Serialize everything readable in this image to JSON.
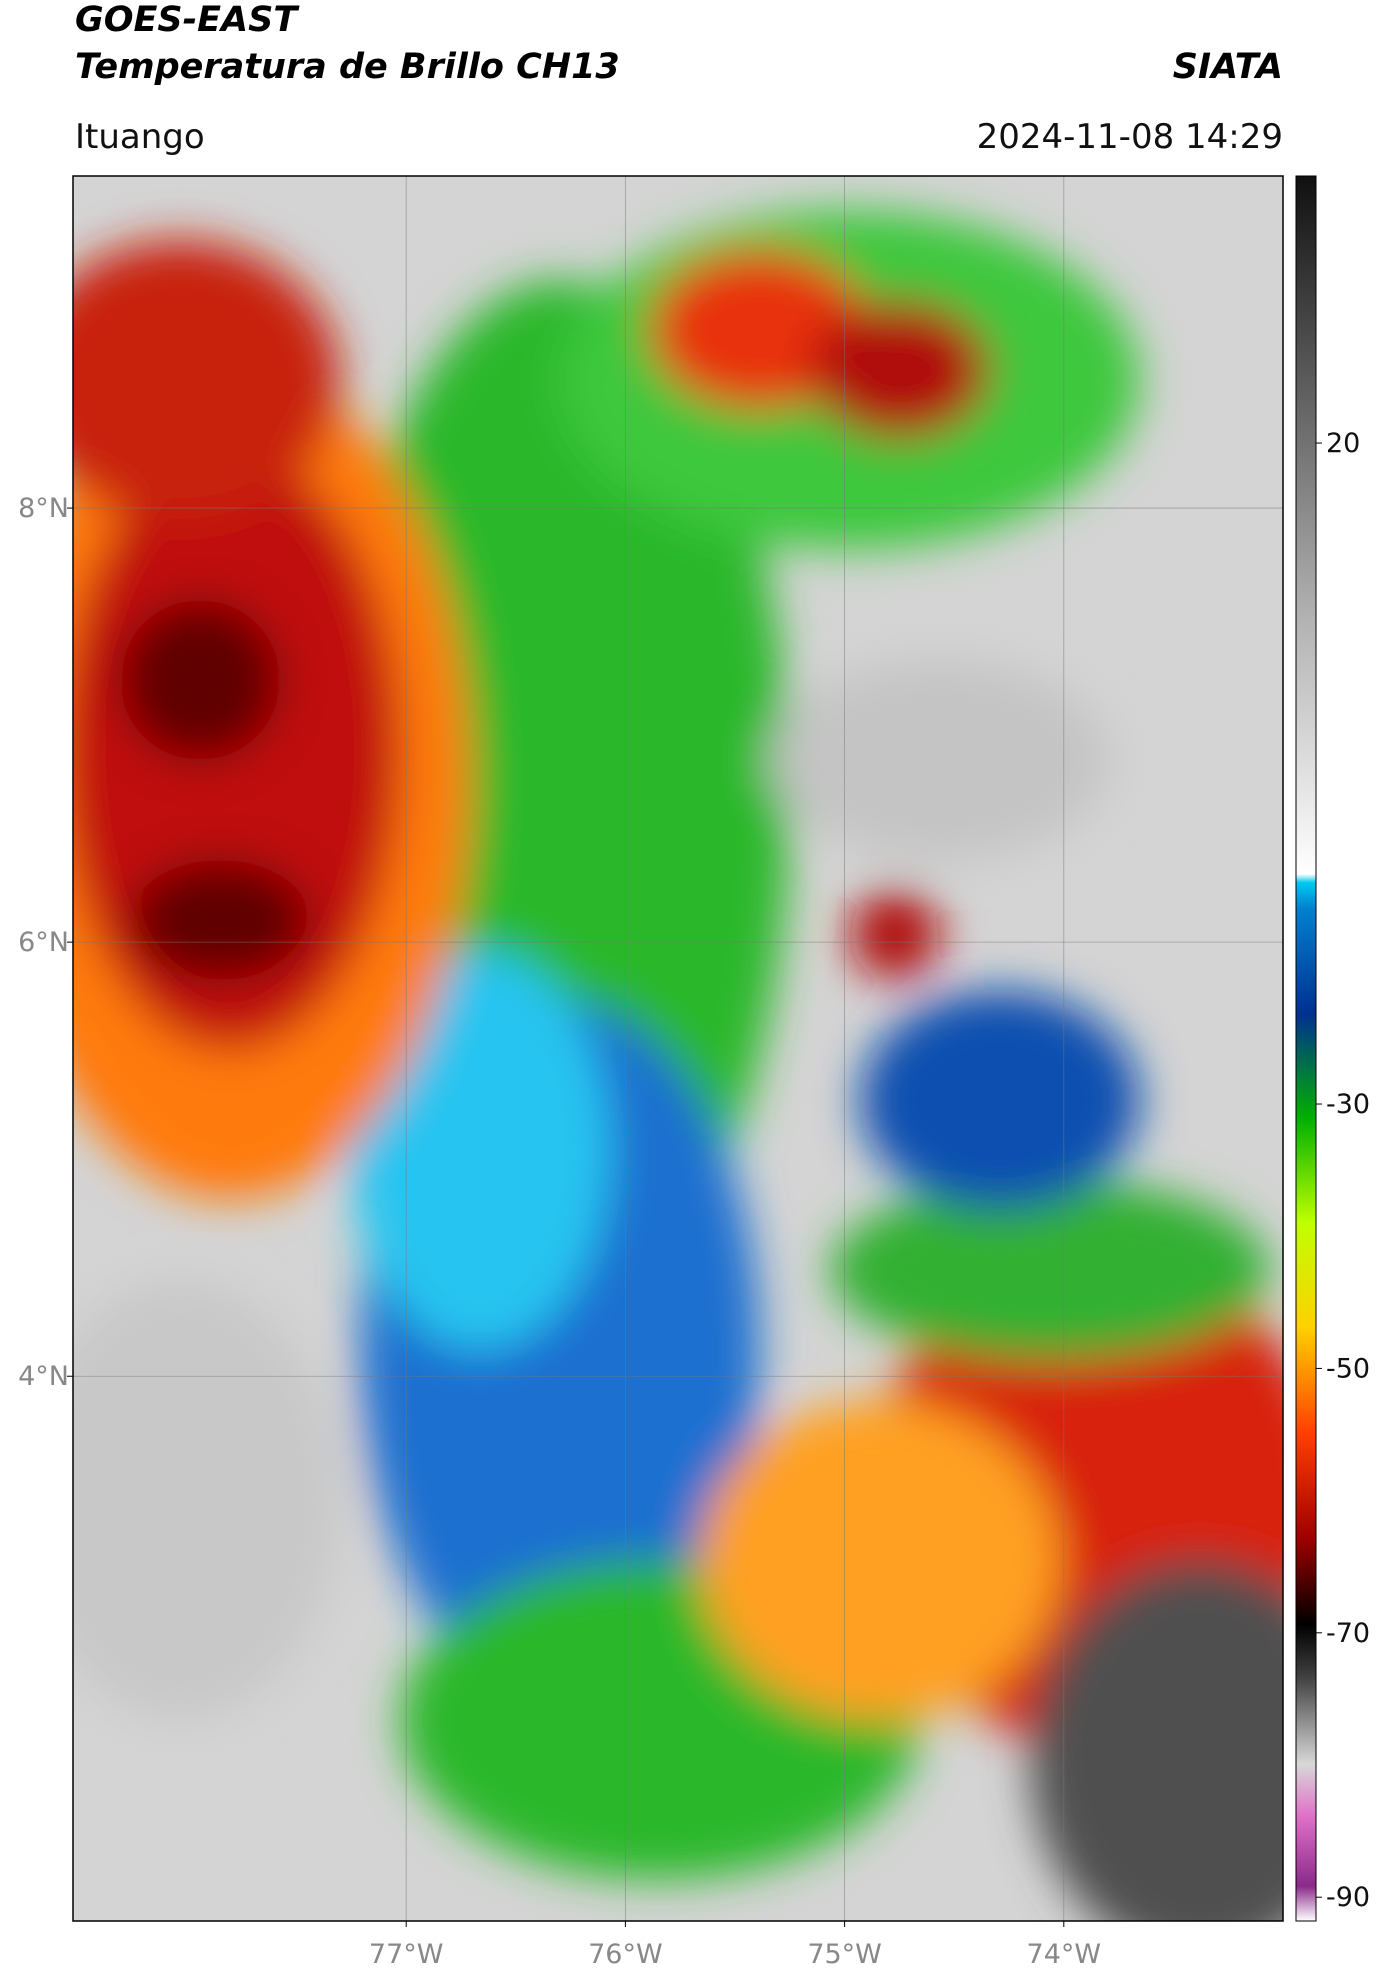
{
  "header": {
    "title": "GOES-EAST",
    "subtitle": "Temperatura de Brillo CH13",
    "source": "SIATA",
    "location": "Ituango",
    "datetime": "2024-11-08 14:29"
  },
  "map": {
    "lat_range": [
      1.49,
      9.53
    ],
    "lon_range": [
      -78.52,
      -73.0
    ],
    "lat_ticks": [
      {
        "value": 8,
        "label": "8°N"
      },
      {
        "value": 6,
        "label": "6°N"
      },
      {
        "value": 4,
        "label": "4°N"
      }
    ],
    "lon_ticks": [
      {
        "value": -77,
        "label": "77°W"
      },
      {
        "value": -76,
        "label": "76°W"
      },
      {
        "value": -75,
        "label": "75°W"
      },
      {
        "value": -74,
        "label": "74°W"
      }
    ]
  },
  "colorbar": {
    "range": [
      -91.8,
      40.2
    ],
    "ticks": [
      20,
      -30,
      -50,
      -70,
      -90
    ]
  }
}
